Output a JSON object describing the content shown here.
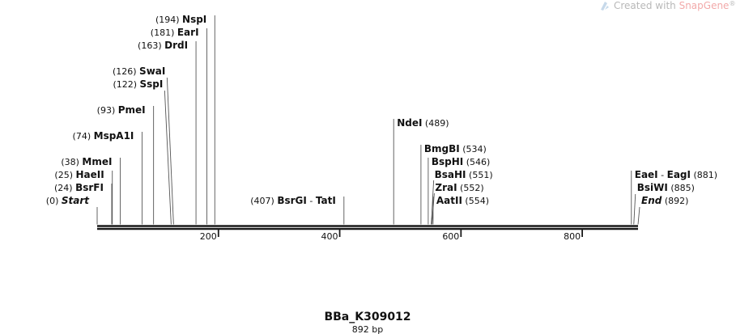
{
  "watermark": {
    "prefix": "Created with ",
    "brand": "SnapGene",
    "mark": "®",
    "colors": {
      "text": "#b8b8b8",
      "brand": "#f2a9a9",
      "icon": "#c7d9ea"
    }
  },
  "map": {
    "title": "BBa_K309012",
    "subtitle": "892 bp",
    "length_bp": 892,
    "ticks": [
      {
        "value": 200,
        "label": "200"
      },
      {
        "value": 400,
        "label": "400"
      },
      {
        "value": 600,
        "label": "600"
      },
      {
        "value": 800,
        "label": "800"
      }
    ],
    "sites": [
      {
        "id": "start",
        "name": "Start",
        "pos": 0,
        "pos_label": "(0)",
        "side": "left",
        "italic": true,
        "row": 0
      },
      {
        "id": "bsrfi",
        "name": "BsrFI",
        "pos": 24,
        "pos_label": "(24)",
        "side": "left",
        "italic": false,
        "row": 1
      },
      {
        "id": "haeii",
        "name": "HaeII",
        "pos": 25,
        "pos_label": "(25)",
        "side": "left",
        "italic": false,
        "row": 2
      },
      {
        "id": "mmei",
        "name": "MmeI",
        "pos": 38,
        "pos_label": "(38)",
        "side": "left",
        "italic": false,
        "row": 3
      },
      {
        "id": "mspa1i",
        "name": "MspA1I",
        "pos": 74,
        "pos_label": "(74)",
        "side": "left",
        "italic": false,
        "row": 5
      },
      {
        "id": "pmei",
        "name": "PmeI",
        "pos": 93,
        "pos_label": "(93)",
        "side": "left",
        "italic": false,
        "row": 7
      },
      {
        "id": "sspi",
        "name": "SspI",
        "pos": 122,
        "pos_label": "(122)",
        "side": "left",
        "italic": false,
        "row": 9
      },
      {
        "id": "swai",
        "name": "SwaI",
        "pos": 126,
        "pos_label": "(126)",
        "side": "left",
        "italic": false,
        "row": 10
      },
      {
        "id": "drdi",
        "name": "DrdI",
        "pos": 163,
        "pos_label": "(163)",
        "side": "left",
        "italic": false,
        "row": 12
      },
      {
        "id": "eari",
        "name": "EarI",
        "pos": 181,
        "pos_label": "(181)",
        "side": "left",
        "italic": false,
        "row": 13
      },
      {
        "id": "nspi",
        "name": "NspI",
        "pos": 194,
        "pos_label": "(194)",
        "side": "left",
        "italic": false,
        "row": 14
      },
      {
        "id": "bsrgi",
        "name": "BsrGI",
        "name2": "TatI",
        "pos": 407,
        "pos_label": "(407)",
        "side": "left",
        "italic": false,
        "row": 0
      },
      {
        "id": "ndei",
        "name": "NdeI",
        "pos": 489,
        "pos_label": "(489)",
        "side": "right",
        "italic": false,
        "row": 6
      },
      {
        "id": "bmgbi",
        "name": "BmgBI",
        "pos": 534,
        "pos_label": "(534)",
        "side": "right",
        "italic": false,
        "row": 4
      },
      {
        "id": "bsphi",
        "name": "BspHI",
        "pos": 546,
        "pos_label": "(546)",
        "side": "right",
        "italic": false,
        "row": 3
      },
      {
        "id": "bsahi",
        "name": "BsaHI",
        "pos": 551,
        "pos_label": "(551)",
        "side": "right",
        "italic": false,
        "row": 2
      },
      {
        "id": "zrai",
        "name": "ZraI",
        "pos": 552,
        "pos_label": "(552)",
        "side": "right",
        "italic": false,
        "row": 1
      },
      {
        "id": "aatii",
        "name": "AatII",
        "pos": 554,
        "pos_label": "(554)",
        "side": "right",
        "italic": false,
        "row": 0
      },
      {
        "id": "eaei",
        "name": "EaeI",
        "name2": "EagI",
        "pos": 881,
        "pos_label": "(881)",
        "side": "right",
        "italic": false,
        "row": 2
      },
      {
        "id": "bsiwi",
        "name": "BsiWI",
        "pos": 885,
        "pos_label": "(885)",
        "side": "right",
        "italic": false,
        "row": 1
      },
      {
        "id": "end",
        "name": "End",
        "pos": 892,
        "pos_label": "(892)",
        "side": "right",
        "italic": true,
        "row": 0
      }
    ],
    "colors": {
      "backbone": "#1a1a1a",
      "leader": "#555555",
      "text": "#111111"
    }
  }
}
